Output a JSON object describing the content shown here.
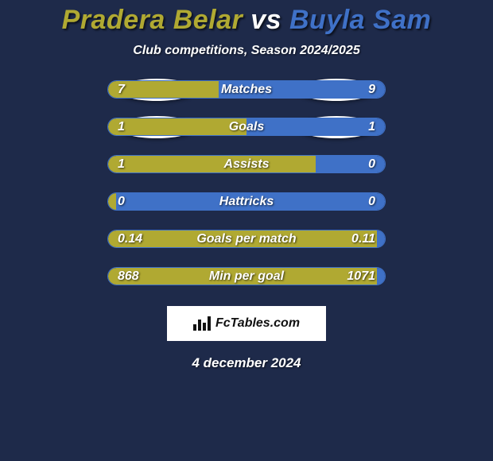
{
  "background_color": "#1e2a4a",
  "title": {
    "text_a": "Pradera Belar",
    "text_vs": " vs ",
    "text_b": "Buyla Sam",
    "color_a": "#b0a932",
    "color_vs": "#ffffff",
    "color_b": "#3f71c7"
  },
  "subtitle": "Club competitions, Season 2024/2025",
  "bar_colors": {
    "left": "#b0a932",
    "right": "#3f71c7",
    "track": "#1e2a4a",
    "track_border": "#3f71c7"
  },
  "rows": [
    {
      "label": "Matches",
      "left_val": "7",
      "right_val": "9",
      "left_pct": 40,
      "right_pct": 60,
      "show_ellipses": true
    },
    {
      "label": "Goals",
      "left_val": "1",
      "right_val": "1",
      "left_pct": 50,
      "right_pct": 50,
      "show_ellipses": true
    },
    {
      "label": "Assists",
      "left_val": "1",
      "right_val": "0",
      "left_pct": 75,
      "right_pct": 25,
      "show_ellipses": false
    },
    {
      "label": "Hattricks",
      "left_val": "0",
      "right_val": "0",
      "left_pct": 3,
      "right_pct": 97,
      "show_ellipses": false
    },
    {
      "label": "Goals per match",
      "left_val": "0.14",
      "right_val": "0.11",
      "left_pct": 97,
      "right_pct": 3,
      "show_ellipses": false
    },
    {
      "label": "Min per goal",
      "left_val": "868",
      "right_val": "1071",
      "left_pct": 97,
      "right_pct": 3,
      "show_ellipses": false
    }
  ],
  "footer": {
    "brand": "FcTables.com"
  },
  "date": "4 december 2024"
}
